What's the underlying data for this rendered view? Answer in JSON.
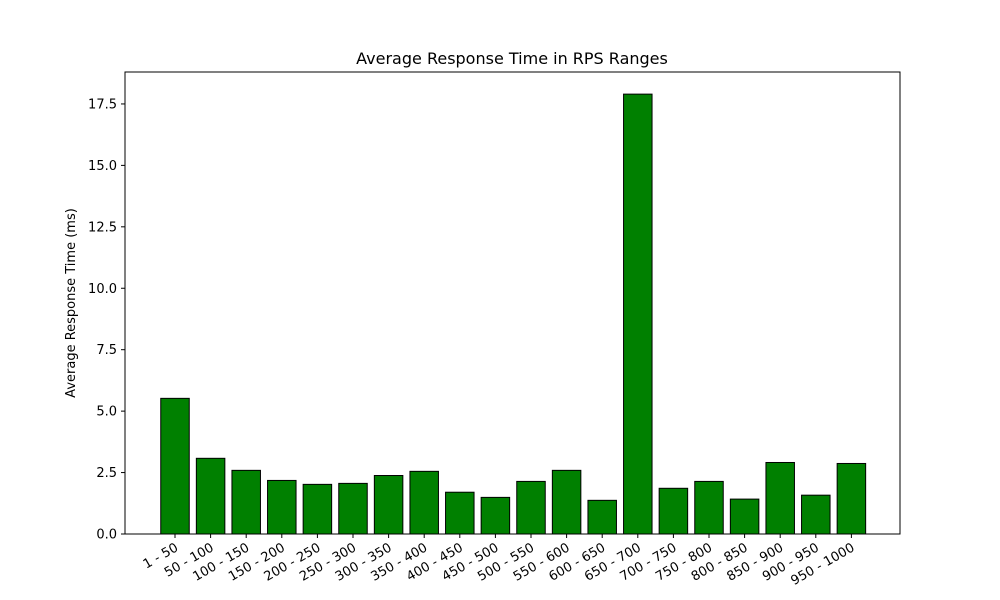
{
  "chart_data": {
    "type": "bar",
    "title": "Average Response Time in RPS Ranges",
    "xlabel": "",
    "ylabel": "Average Response Time (ms)",
    "categories": [
      "1 - 50",
      "50 - 100",
      "100 - 150",
      "150 - 200",
      "200 - 250",
      "250 - 300",
      "300 - 350",
      "350 - 400",
      "400 - 450",
      "450 - 500",
      "500 - 550",
      "550 - 600",
      "600 - 650",
      "650 - 700",
      "700 - 750",
      "750 - 800",
      "800 - 850",
      "850 - 900",
      "900 - 950",
      "950 - 1000"
    ],
    "values": [
      5.52,
      3.08,
      2.59,
      2.18,
      2.02,
      2.06,
      2.38,
      2.55,
      1.7,
      1.49,
      2.14,
      2.59,
      1.37,
      17.9,
      1.86,
      2.14,
      1.42,
      2.91,
      1.58,
      2.87
    ],
    "ylim": [
      0,
      18.8
    ],
    "yticks": [
      "0.0",
      "2.5",
      "5.0",
      "7.5",
      "10.0",
      "12.5",
      "15.0",
      "17.5"
    ],
    "grid": false,
    "colors": {
      "bar_fill": "#008000",
      "bar_edge": "#000000"
    }
  }
}
